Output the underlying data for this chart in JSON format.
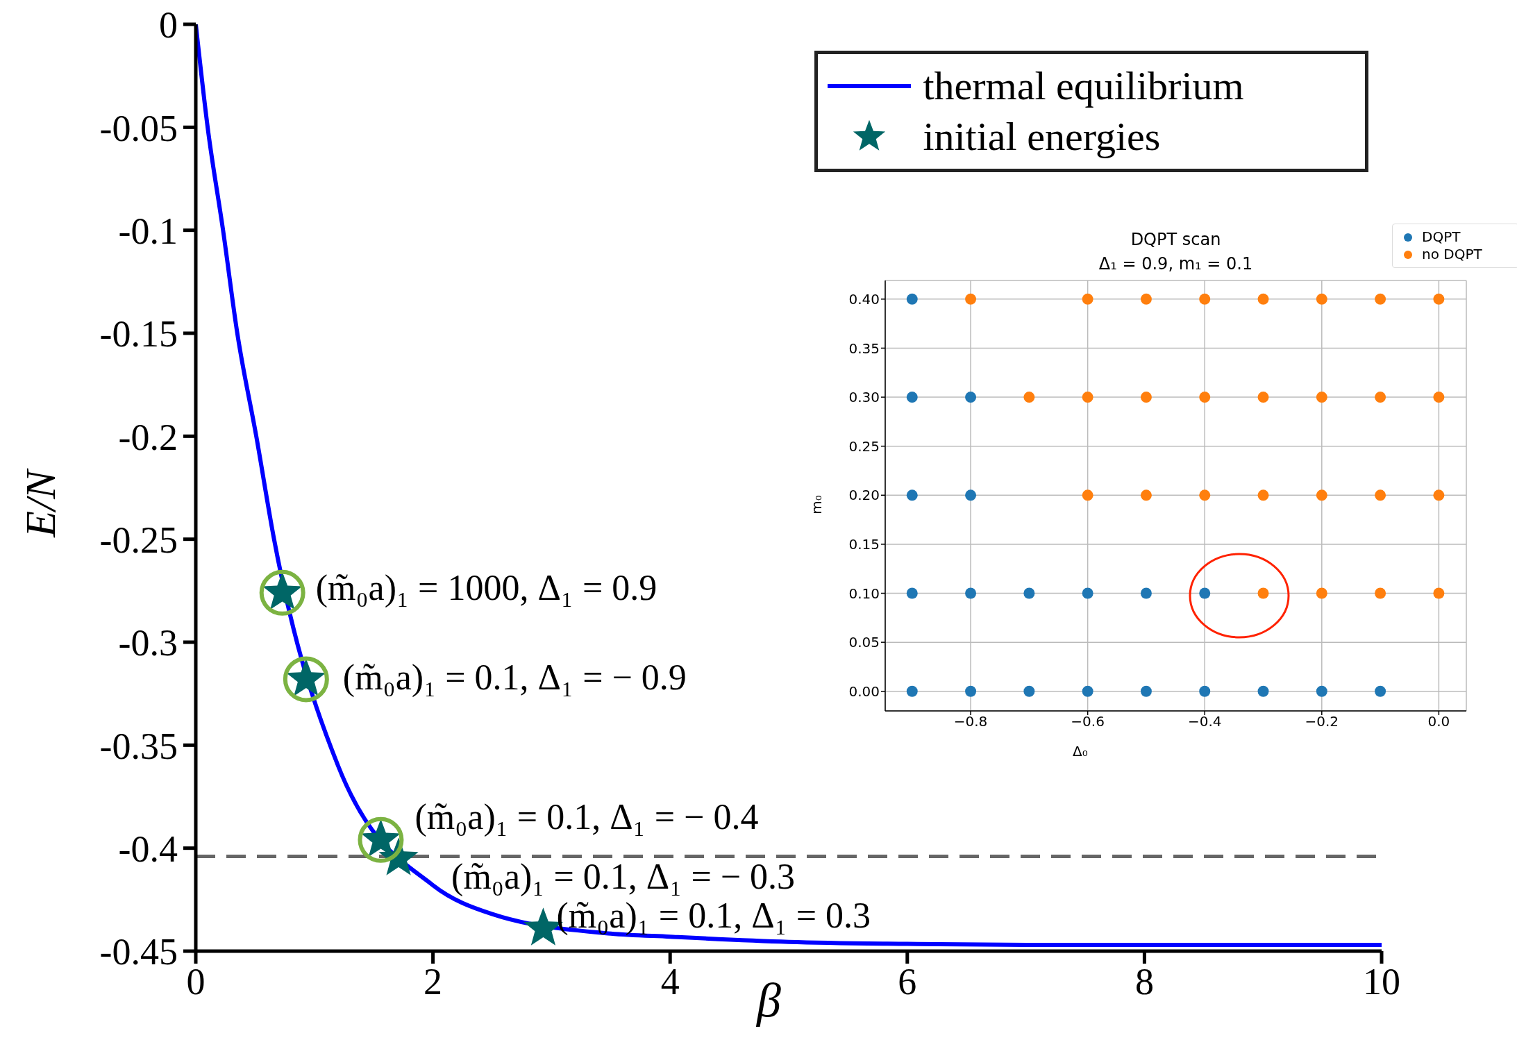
{
  "chart_data": [
    {
      "type": "line",
      "xlabel": "β",
      "ylabel": "E/N",
      "xlim": [
        0,
        10
      ],
      "ylim": [
        -0.45,
        0
      ],
      "xticks": [
        0,
        2,
        4,
        6,
        8,
        10
      ],
      "yticks": [
        0,
        -0.05,
        -0.1,
        -0.15,
        -0.2,
        -0.25,
        -0.3,
        -0.35,
        -0.4,
        -0.45
      ],
      "legend": "top right",
      "series": [
        {
          "name": "thermal equilibrium",
          "type": "line",
          "color": "#0000ff",
          "x": [
            0,
            0.1,
            0.23,
            0.35,
            0.51,
            0.66,
            1.2,
            2,
            2.5,
            3.5,
            4,
            5,
            6,
            7,
            8,
            10
          ],
          "values": [
            0,
            -0.05,
            -0.1,
            -0.15,
            -0.2,
            -0.25,
            -0.36,
            -0.418,
            -0.432,
            -0.4415,
            -0.443,
            -0.4455,
            -0.4465,
            -0.447,
            -0.447,
            -0.447
          ]
        },
        {
          "name": "initial energies",
          "type": "scatter",
          "marker": "star",
          "color": "#006666",
          "x": [
            0.73,
            0.93,
            1.56,
            1.71,
            2.93
          ],
          "values": [
            -0.276,
            -0.318,
            -0.396,
            -0.405,
            -0.439
          ]
        },
        {
          "type": "scatter",
          "marker": "circle",
          "color": "#7cb342",
          "x": [
            0.73,
            0.93,
            1.56
          ],
          "values": [
            -0.276,
            -0.318,
            -0.396
          ]
        }
      ],
      "ref_lines": [
        {
          "axis": "y",
          "value": -0.404,
          "color": "#666666",
          "line_style": "dashed"
        }
      ],
      "annotations": [
        {
          "text": "(m̃₀a)₁ = 1000, Δ₁ = 0.9",
          "x": 0.73,
          "y": -0.276
        },
        {
          "text": "(m̃₀a)₁ = 0.1, Δ₁ = − 0.9",
          "x": 0.93,
          "y": -0.318
        },
        {
          "text": "(m̃₀a)₁ = 0.1, Δ₁ = − 0.4",
          "x": 1.56,
          "y": -0.396
        },
        {
          "text": "(m̃₀a)₁ = 0.1, Δ₁ = − 0.3",
          "x": 1.71,
          "y": -0.405
        },
        {
          "text": "(m̃₀a)₁ = 0.1, Δ₁ = 0.3",
          "x": 2.93,
          "y": -0.439
        }
      ]
    },
    {
      "type": "scatter",
      "title": "DQPT scan",
      "subtitle": "Δ₁ = 0.9, m₁ = 0.1",
      "xlabel": "Δ₀",
      "ylabel": "m₀",
      "xlim": [
        -0.946,
        0.047
      ],
      "ylim": [
        -0.02,
        0.419
      ],
      "xticks": [
        {
          "value": -0.8,
          "label": "−0.8"
        },
        {
          "value": -0.6,
          "label": "−0.6"
        },
        {
          "value": -0.4,
          "label": "−0.4"
        },
        {
          "value": -0.2,
          "label": "−0.2"
        },
        {
          "value": 0,
          "label": "0.0"
        }
      ],
      "yticks": [
        {
          "value": 0,
          "label": "0.00"
        },
        {
          "value": 0.05,
          "label": "0.05"
        },
        {
          "value": 0.1,
          "label": "0.10"
        },
        {
          "value": 0.15,
          "label": "0.15"
        },
        {
          "value": 0.2,
          "label": "0.20"
        },
        {
          "value": 0.25,
          "label": "0.25"
        },
        {
          "value": 0.3,
          "label": "0.30"
        },
        {
          "value": 0.35,
          "label": "0.35"
        },
        {
          "value": 0.4,
          "label": "0.40"
        }
      ],
      "grid": true,
      "legend": "top right",
      "marker": "circle",
      "series": [
        {
          "name": "DQPT",
          "color": "#1f77b4",
          "x": [
            -0.9,
            -0.9,
            -0.8,
            -0.9,
            -0.8,
            -0.9,
            -0.8,
            -0.7,
            -0.6,
            -0.5,
            -0.4,
            -0.9,
            -0.8,
            -0.7,
            -0.6,
            -0.5,
            -0.4,
            -0.3,
            -0.2,
            -0.1
          ],
          "values": [
            0.4,
            0.3,
            0.3,
            0.2,
            0.2,
            0.1,
            0.1,
            0.1,
            0.1,
            0.1,
            0.1,
            0,
            0,
            0,
            0,
            0,
            0,
            0,
            0,
            0
          ]
        },
        {
          "name": "no DQPT",
          "color": "#ff7f0e",
          "x": [
            -0.8,
            -0.6,
            -0.5,
            -0.4,
            -0.3,
            -0.2,
            -0.1,
            0,
            -0.7,
            -0.6,
            -0.5,
            -0.4,
            -0.3,
            -0.2,
            -0.1,
            0,
            -0.6,
            -0.5,
            -0.4,
            -0.3,
            -0.2,
            -0.1,
            0,
            -0.3,
            -0.2,
            -0.1,
            0
          ],
          "values": [
            0.4,
            0.4,
            0.4,
            0.4,
            0.4,
            0.4,
            0.4,
            0.4,
            0.3,
            0.3,
            0.3,
            0.3,
            0.3,
            0.3,
            0.3,
            0.3,
            0.2,
            0.2,
            0.2,
            0.2,
            0.2,
            0.2,
            0.2,
            0.1,
            0.1,
            0.1,
            0.1
          ]
        }
      ]
    }
  ]
}
